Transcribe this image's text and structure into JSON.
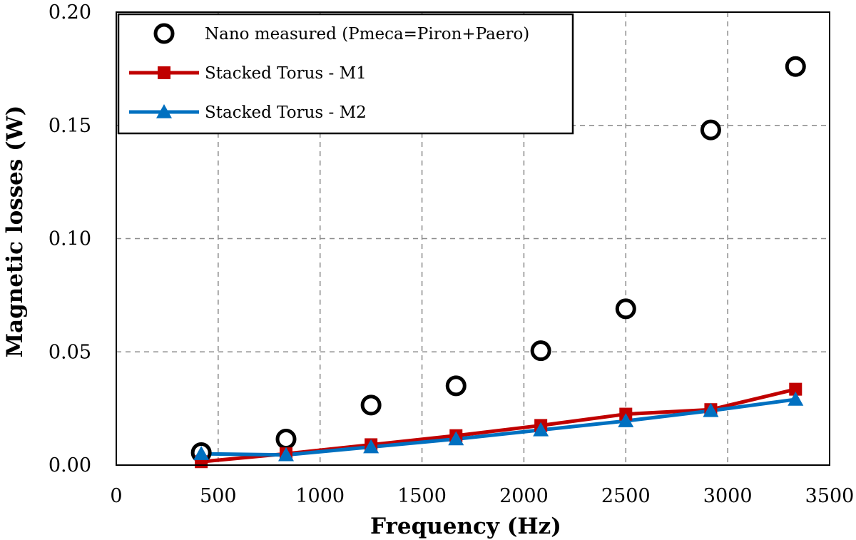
{
  "chart_data": {
    "type": "line",
    "xlabel": "Frequency (Hz)",
    "ylabel": "Magnetic losses (W)",
    "xlim": [
      0,
      3500
    ],
    "ylim": [
      0,
      0.2
    ],
    "xticks": [
      0,
      500,
      1000,
      1500,
      2000,
      2500,
      3000,
      3500
    ],
    "xtick_labels": [
      "0",
      "500",
      "1000",
      "1500",
      "2000",
      "2500",
      "3000",
      "3500"
    ],
    "yticks": [
      0,
      0.05,
      0.1,
      0.15,
      0.2
    ],
    "ytick_labels": [
      "0.00",
      "0.05",
      "0.10",
      "0.15",
      "0.20"
    ],
    "grid": true,
    "legend_position": "top-left",
    "series": [
      {
        "name": "Nano measured (Pmeca=Piron+Paero)",
        "type": "scatter",
        "marker": "circle-open",
        "color": "#000000",
        "x": [
          417,
          833,
          1250,
          1667,
          2083,
          2500,
          2917,
          3333
        ],
        "y": [
          0.0055,
          0.0115,
          0.0265,
          0.035,
          0.0505,
          0.069,
          0.148,
          0.176
        ]
      },
      {
        "name": "Stacked Torus - M1",
        "type": "line",
        "marker": "square",
        "color": "#c00000",
        "x": [
          417,
          833,
          1250,
          1667,
          2083,
          2500,
          2917,
          3333
        ],
        "y": [
          0.0015,
          0.005,
          0.009,
          0.013,
          0.0175,
          0.0225,
          0.0245,
          0.0335
        ]
      },
      {
        "name": "Stacked Torus - M2",
        "type": "line",
        "marker": "triangle",
        "color": "#0070c0",
        "x": [
          417,
          833,
          1250,
          1667,
          2083,
          2500,
          2917,
          3333
        ],
        "y": [
          0.005,
          0.0045,
          0.008,
          0.0115,
          0.0155,
          0.0195,
          0.024,
          0.029
        ]
      }
    ]
  }
}
